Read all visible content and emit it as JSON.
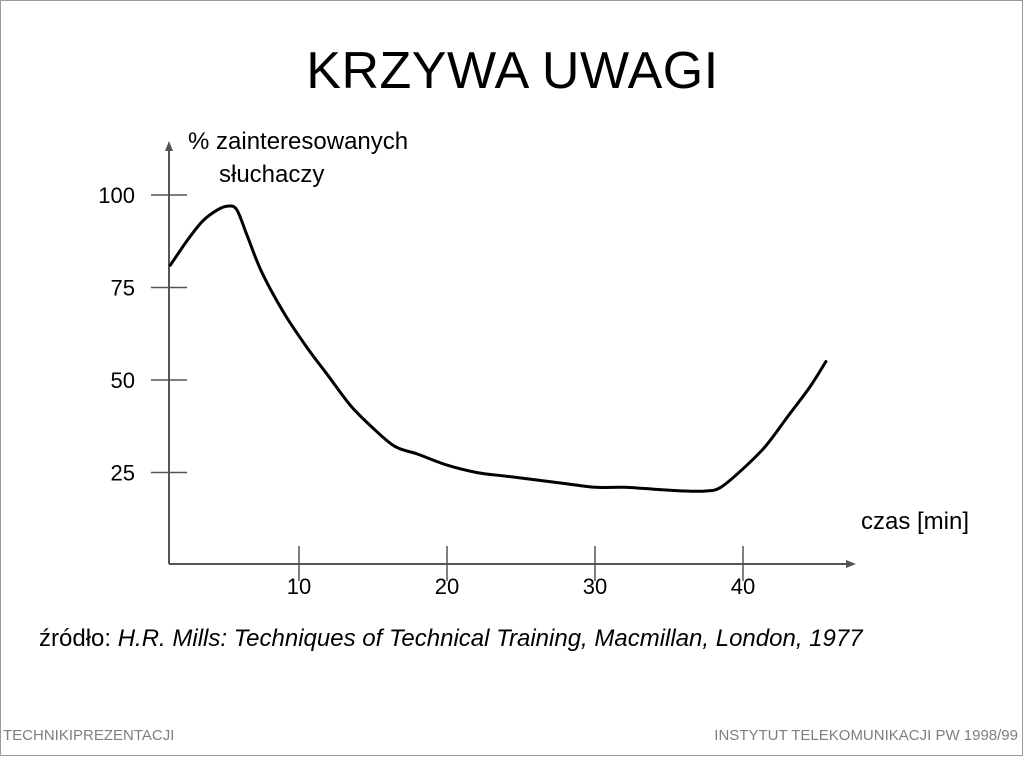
{
  "slide": {
    "title": "KRZYWA UWAGI",
    "source_label": "źródło:",
    "source_reference": "H.R. Mills: Techniques of Technical Training, Macmillan, London, 1977",
    "footer_left": "TECHNIKIPREZENTACJI",
    "footer_right": "INSTYTUT TELEKOMUNIKACJI PW 1998/99"
  },
  "chart_data": {
    "type": "line",
    "title": "KRZYWA UWAGI",
    "ylabel_lines": [
      "% zainteresowanych",
      "słuchaczy"
    ],
    "xlabel": "czas [min]",
    "x_ticks": [
      10,
      20,
      30,
      40
    ],
    "y_ticks": [
      25,
      50,
      75,
      100
    ],
    "xlim": [
      1.3,
      46.5
    ],
    "ylim": [
      4,
      115
    ],
    "grid": false,
    "series": [
      {
        "x": [
          1.3,
          2.5,
          3.5,
          4.5,
          5.2,
          5.8,
          6.5,
          7.5,
          9,
          10.5,
          12,
          13.5,
          15,
          16.5,
          18,
          20,
          22,
          24,
          26,
          28,
          30,
          32,
          34,
          36,
          37.5,
          38.5,
          40,
          41.5,
          43,
          44.5,
          45.6
        ],
        "values": [
          81,
          88,
          93,
          96,
          97,
          96,
          89,
          79,
          68,
          59,
          51,
          43,
          37,
          32,
          30,
          27,
          25,
          24,
          23,
          22,
          21,
          21,
          20.5,
          20,
          20,
          21,
          26,
          32,
          40,
          48,
          55
        ]
      }
    ]
  }
}
